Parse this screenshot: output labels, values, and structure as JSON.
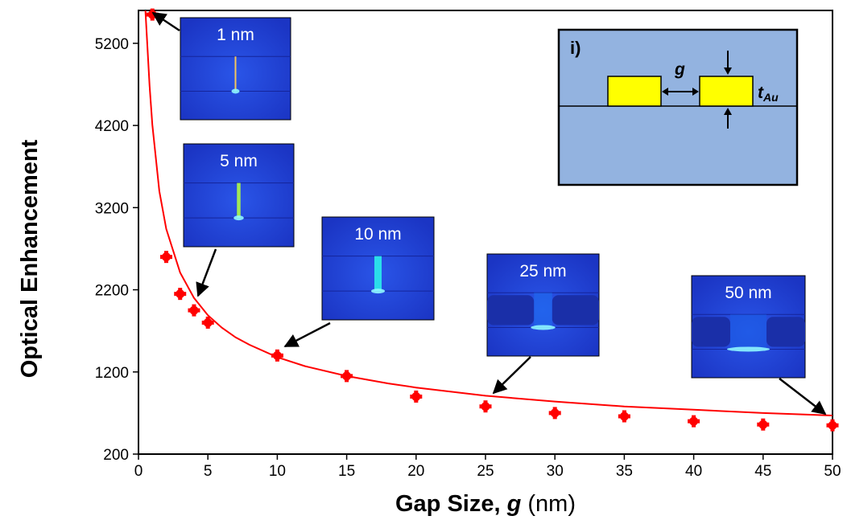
{
  "chart_data": {
    "type": "scatter",
    "xlabel_main": "Gap Size, ",
    "xlabel_var": "g",
    "xlabel_unit": " (nm)",
    "ylabel": "Optical Enhancement",
    "xlim": [
      0,
      50
    ],
    "ylim": [
      200,
      5600
    ],
    "x_ticks": [
      0,
      5,
      10,
      15,
      20,
      25,
      30,
      35,
      40,
      45,
      50
    ],
    "y_ticks": [
      200,
      1200,
      2200,
      3200,
      4200,
      5200
    ],
    "grid": false,
    "series": [
      {
        "kind": "markers",
        "color": "#ff0000",
        "points": [
          [
            1,
            5550
          ],
          [
            2,
            2600
          ],
          [
            3,
            2150
          ],
          [
            4,
            1950
          ],
          [
            5,
            1800
          ],
          [
            10,
            1400
          ],
          [
            15,
            1150
          ],
          [
            20,
            900
          ],
          [
            25,
            780
          ],
          [
            30,
            700
          ],
          [
            35,
            660
          ],
          [
            40,
            600
          ],
          [
            45,
            560
          ],
          [
            50,
            550
          ]
        ]
      },
      {
        "kind": "fit-line",
        "color": "#ff0000",
        "points": [
          [
            0.5,
            5600
          ],
          [
            0.8,
            4680
          ],
          [
            1,
            4210
          ],
          [
            1.5,
            3400
          ],
          [
            2,
            2940
          ],
          [
            3,
            2410
          ],
          [
            4,
            2100
          ],
          [
            5,
            1890
          ],
          [
            6,
            1740
          ],
          [
            7,
            1620
          ],
          [
            8,
            1530
          ],
          [
            10,
            1380
          ],
          [
            12,
            1270
          ],
          [
            15,
            1150
          ],
          [
            18,
            1060
          ],
          [
            20,
            1010
          ],
          [
            25,
            910
          ],
          [
            30,
            840
          ],
          [
            35,
            780
          ],
          [
            40,
            740
          ],
          [
            45,
            700
          ],
          [
            50,
            670
          ]
        ]
      }
    ],
    "insets": [
      {
        "label": "1 nm",
        "gap_nm": 1,
        "hot": "#ffcc55"
      },
      {
        "label": "5 nm",
        "gap_nm": 5,
        "hot": "#a8f04e"
      },
      {
        "label": "10 nm",
        "gap_nm": 10,
        "hot": "#2be6ea"
      },
      {
        "label": "25 nm",
        "gap_nm": 25,
        "hot": "#1e6ff0"
      },
      {
        "label": "50 nm",
        "gap_nm": 50,
        "hot": "#1a5fe6"
      }
    ],
    "schematic": {
      "panel_label": "i)",
      "gap_label": "g",
      "thickness_label": "t",
      "thickness_sub": "Au",
      "bg_color": "#93b3e0",
      "metal_color": "#ffff00"
    }
  }
}
